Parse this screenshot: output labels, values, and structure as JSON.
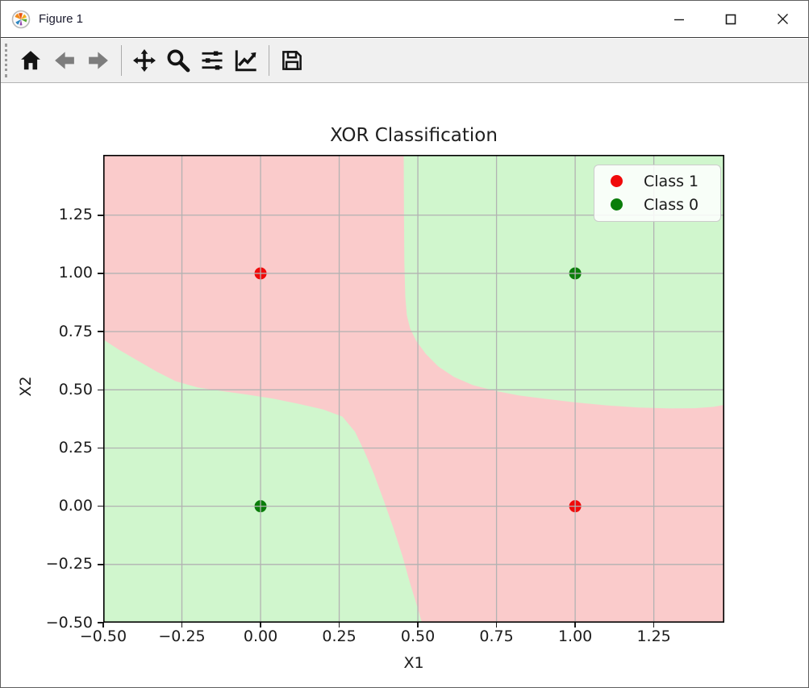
{
  "window": {
    "title": "Figure 1",
    "icons": {
      "app": "matplotlib-logo-icon",
      "minimize": "minimize-icon",
      "maximize": "maximize-icon",
      "close": "close-icon"
    }
  },
  "toolbar": {
    "buttons": [
      {
        "name": "home",
        "icon": "home-icon",
        "enabled": true
      },
      {
        "name": "back",
        "icon": "arrow-left-icon",
        "enabled": false
      },
      {
        "name": "forward",
        "icon": "arrow-right-icon",
        "enabled": false
      },
      {
        "name": "pan",
        "icon": "move-icon",
        "enabled": true
      },
      {
        "name": "zoom",
        "icon": "magnifier-icon",
        "enabled": true
      },
      {
        "name": "configure-subplots",
        "icon": "sliders-icon",
        "enabled": true
      },
      {
        "name": "customize",
        "icon": "line-chart-icon",
        "enabled": true
      },
      {
        "name": "save",
        "icon": "floppy-disk-icon",
        "enabled": true
      }
    ],
    "icon_color_enabled": "#141414",
    "icon_color_disabled": "#7d7d7d"
  },
  "chart_data": {
    "type": "scatter",
    "title": "XOR Classification",
    "xlabel": "X1",
    "ylabel": "X2",
    "xlim": [
      -0.5,
      1.474
    ],
    "ylim": [
      -0.5,
      1.509
    ],
    "grid": true,
    "grid_color": "#b2b2b2",
    "xticks": {
      "values": [
        -0.5,
        -0.25,
        0.0,
        0.25,
        0.5,
        0.75,
        1.0,
        1.25
      ],
      "labels": [
        "−0.50",
        "−0.25",
        "0.00",
        "0.25",
        "0.50",
        "0.75",
        "1.00",
        "1.25"
      ]
    },
    "yticks": {
      "values": [
        -0.5,
        -0.25,
        0.0,
        0.25,
        0.5,
        0.75,
        1.0,
        1.25
      ],
      "labels": [
        "−0.50",
        "−0.25",
        "0.00",
        "0.25",
        "0.50",
        "0.75",
        "1.00",
        "1.25"
      ]
    },
    "series": [
      {
        "name": "Class 1",
        "color": "#f00a0a",
        "points": [
          [
            0,
            1
          ],
          [
            1,
            0
          ]
        ]
      },
      {
        "name": "Class 0",
        "color": "#0a7d0a",
        "points": [
          [
            0,
            0
          ],
          [
            1,
            1
          ]
        ]
      }
    ],
    "decision_regions": {
      "class1_fill": "#facbcb",
      "class0_fill": "#d0f6cd",
      "class0_boundaries": [
        {
          "region": "upper-right",
          "curve": [
            [
              0.455,
              1.52
            ],
            [
              0.456,
              1.25
            ],
            [
              0.457,
              1.05
            ],
            [
              0.46,
              0.9
            ],
            [
              0.465,
              0.82
            ],
            [
              0.475,
              0.765
            ],
            [
              0.495,
              0.71
            ],
            [
              0.525,
              0.655
            ],
            [
              0.565,
              0.6
            ],
            [
              0.615,
              0.555
            ],
            [
              0.675,
              0.52
            ],
            [
              0.745,
              0.496
            ],
            [
              0.82,
              0.476
            ],
            [
              0.9,
              0.462
            ],
            [
              1.0,
              0.446
            ],
            [
              1.1,
              0.433
            ],
            [
              1.2,
              0.424
            ],
            [
              1.3,
              0.42
            ],
            [
              1.38,
              0.421
            ],
            [
              1.44,
              0.427
            ],
            [
              1.48,
              0.437
            ]
          ],
          "close_corner": [
            1.48,
            1.52
          ]
        },
        {
          "region": "lower-left",
          "curve": [
            [
              -0.51,
              0.725
            ],
            [
              -0.45,
              0.672
            ],
            [
              -0.39,
              0.625
            ],
            [
              -0.33,
              0.578
            ],
            [
              -0.27,
              0.537
            ],
            [
              -0.2,
              0.51
            ],
            [
              -0.12,
              0.494
            ],
            [
              -0.04,
              0.479
            ],
            [
              0.04,
              0.462
            ],
            [
              0.12,
              0.44
            ],
            [
              0.2,
              0.415
            ],
            [
              0.26,
              0.385
            ],
            [
              0.3,
              0.32
            ],
            [
              0.33,
              0.235
            ],
            [
              0.36,
              0.14
            ],
            [
              0.39,
              0.03
            ],
            [
              0.42,
              -0.085
            ],
            [
              0.45,
              -0.21
            ],
            [
              0.475,
              -0.33
            ],
            [
              0.5,
              -0.44
            ],
            [
              0.515,
              -0.51
            ]
          ],
          "close_corner": [
            -0.51,
            -0.51
          ]
        }
      ]
    },
    "legend": {
      "loc": "upper right",
      "entries": [
        {
          "label": "Class 1",
          "color": "#f00a0a"
        },
        {
          "label": "Class 0",
          "color": "#0a7d0a"
        }
      ]
    }
  }
}
